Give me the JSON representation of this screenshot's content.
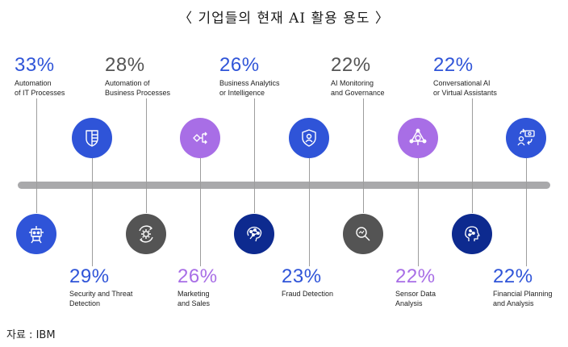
{
  "title": "〈 기업들의 현재 AI 활용 용도 〉",
  "source": "자료 : IBM",
  "colors": {
    "blue": "#2f54d8",
    "purple": "#a86ee6",
    "gray": "#545454",
    "navy": "#0d2a8f",
    "timeline": "#a9a9ab"
  },
  "top_items": [
    {
      "percent": "33%",
      "label": "Automation\nof IT Processes",
      "color": "#2f54d8"
    },
    {
      "percent": "28%",
      "label": "Automation of\nBusiness Processes",
      "color": "#545454"
    },
    {
      "percent": "26%",
      "label": "Business Analytics\nor Intelligence",
      "color": "#2f54d8"
    },
    {
      "percent": "22%",
      "label": "AI Monitoring\nand Governance",
      "color": "#545454"
    },
    {
      "percent": "22%",
      "label": "Conversational AI\nor Virtual Assistants",
      "color": "#2f54d8"
    }
  ],
  "bottom_items": [
    {
      "percent": "29%",
      "label": "Security and Threat\nDetection",
      "color": "#2f54d8"
    },
    {
      "percent": "26%",
      "label": "Marketing\nand Sales",
      "color": "#a86ee6"
    },
    {
      "percent": "23%",
      "label": "Fraud Detection",
      "color": "#2f54d8"
    },
    {
      "percent": "22%",
      "label": "Sensor Data\nAnalysis",
      "color": "#a86ee6"
    },
    {
      "percent": "22%",
      "label": "Financial Planning\nand Analysis",
      "color": "#2f54d8"
    }
  ],
  "top_icons": [
    {
      "icon": "robot-icon",
      "color": "#2f54d8"
    },
    {
      "icon": "gear-cycle-icon",
      "color": "#545454"
    },
    {
      "icon": "brain-network-icon",
      "color": "#0d2a8f"
    },
    {
      "icon": "magnifier-icon",
      "color": "#545454"
    },
    {
      "icon": "head-circuit-icon",
      "color": "#0d2a8f"
    }
  ],
  "bottom_icons": [
    {
      "icon": "shield-document-icon",
      "color": "#2f54d8"
    },
    {
      "icon": "workflow-icon",
      "color": "#a86ee6"
    },
    {
      "icon": "shield-user-icon",
      "color": "#2f54d8"
    },
    {
      "icon": "sensor-network-icon",
      "color": "#a86ee6"
    },
    {
      "icon": "finance-exchange-icon",
      "color": "#2f54d8"
    }
  ]
}
